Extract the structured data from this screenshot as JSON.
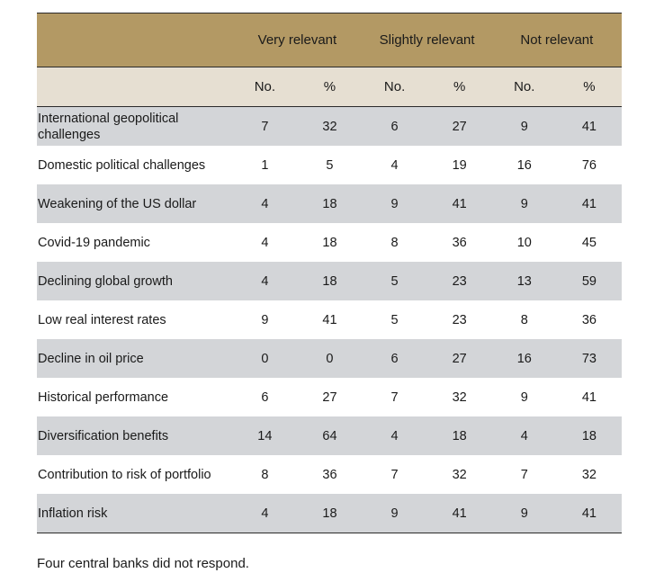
{
  "chart_data": {
    "type": "table",
    "groups": [
      "Very relevant",
      "Slightly relevant",
      "Not relevant"
    ],
    "subheaders": [
      "No.",
      "%"
    ],
    "rows": [
      {
        "label": "International geopolitical challenges",
        "values": [
          7,
          32,
          6,
          27,
          9,
          41
        ]
      },
      {
        "label": "Domestic political challenges",
        "values": [
          1,
          5,
          4,
          19,
          16,
          76
        ]
      },
      {
        "label": "Weakening of the US dollar",
        "values": [
          4,
          18,
          9,
          41,
          9,
          41
        ]
      },
      {
        "label": "Covid-19 pandemic",
        "values": [
          4,
          18,
          8,
          36,
          10,
          45
        ]
      },
      {
        "label": "Declining global growth",
        "values": [
          4,
          18,
          5,
          23,
          13,
          59
        ]
      },
      {
        "label": "Low real interest rates",
        "values": [
          9,
          41,
          5,
          23,
          8,
          36
        ]
      },
      {
        "label": "Decline in oil price",
        "values": [
          0,
          0,
          6,
          27,
          16,
          73
        ]
      },
      {
        "label": "Historical performance",
        "values": [
          6,
          27,
          7,
          32,
          9,
          41
        ]
      },
      {
        "label": "Diversification benefits",
        "values": [
          14,
          64,
          4,
          18,
          4,
          18
        ]
      },
      {
        "label": "Contribution to risk of portfolio",
        "values": [
          8,
          36,
          7,
          32,
          7,
          32
        ]
      },
      {
        "label": "Inflation risk",
        "values": [
          4,
          18,
          9,
          41,
          9,
          41
        ]
      }
    ]
  },
  "footnote": "Four central banks did not respond.",
  "colors": {
    "header_group": "#b39964",
    "header_sub": "#e6dfd2",
    "row_shaded": "#d3d5d8",
    "row_plain": "#ffffff",
    "rule": "#2a2a2a"
  }
}
